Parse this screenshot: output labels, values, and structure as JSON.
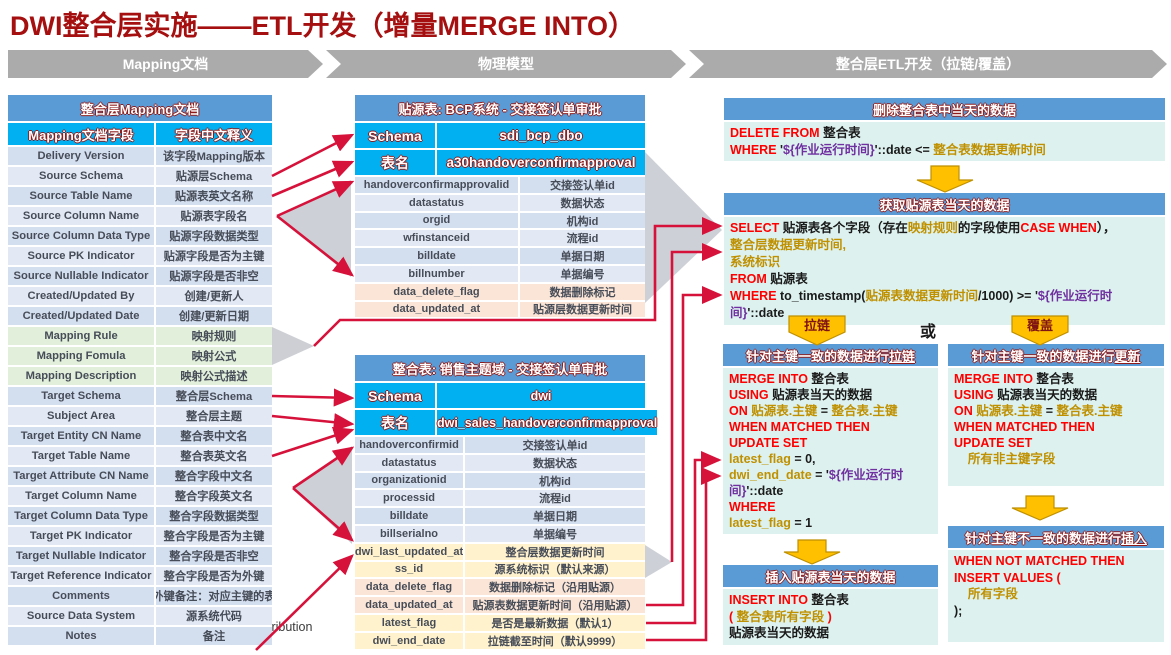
{
  "title": "DWI整合层实施——ETL开发（增量MERGE INTO）",
  "steps": [
    "Mapping文档",
    "物理模型",
    "整合层ETL开发（拉链/覆盖）"
  ],
  "labels": {
    "chain": "拉链",
    "overwrite": "覆盖",
    "or": "或",
    "stray": "distribution"
  },
  "mapping_table": {
    "title": "整合层Mapping文档",
    "columns": [
      "Mapping文档字段",
      "字段中文释义"
    ],
    "rows": [
      {
        "f": "Delivery Version",
        "d": "该字段Mapping版本"
      },
      {
        "f": "Source Schema",
        "d": "贴源层Schema"
      },
      {
        "f": "Source Table Name",
        "d": "贴源表英文名称"
      },
      {
        "f": "Source Column Name",
        "d": "贴源表字段名"
      },
      {
        "f": "Source Column Data Type",
        "d": "贴源字段数据类型"
      },
      {
        "f": "Source PK Indicator",
        "d": "贴源字段是否为主键"
      },
      {
        "f": "Source Nullable Indicator",
        "d": "贴源字段是否非空"
      },
      {
        "f": "Created/Updated By",
        "d": "创建/更新人"
      },
      {
        "f": "Created/Updated Date",
        "d": "创建/更新日期"
      },
      {
        "f": "Mapping Rule",
        "d": "映射规则",
        "tone": "green"
      },
      {
        "f": "Mapping Fomula",
        "d": "映射公式",
        "tone": "green"
      },
      {
        "f": "Mapping Description",
        "d": "映射公式描述",
        "tone": "green"
      },
      {
        "f": "Target Schema",
        "d": "整合层Schema"
      },
      {
        "f": "Subject Area",
        "d": "整合层主题"
      },
      {
        "f": "Target Entity CN Name",
        "d": "整合表中文名"
      },
      {
        "f": "Target Table Name",
        "d": "整合表英文名"
      },
      {
        "f": "Target Attribute CN Name",
        "d": "整合字段中文名"
      },
      {
        "f": "Target Column Name",
        "d": "整合字段英文名"
      },
      {
        "f": "Target Column Data Type",
        "d": "整合字段数据类型"
      },
      {
        "f": "Target PK Indicator",
        "d": "整合字段是否为主键"
      },
      {
        "f": "Target Nullable Indicator",
        "d": "整合字段是否非空"
      },
      {
        "f": "Target Reference Indicator",
        "d": "整合字段是否为外键"
      },
      {
        "f": "Comments",
        "d": "外键备注：对应主键的表"
      },
      {
        "f": "Source Data System",
        "d": "源系统代码"
      },
      {
        "f": "Notes",
        "d": "备注"
      }
    ]
  },
  "source_table": {
    "title": "贴源表: BCP系统 - 交接签认单审批",
    "schema_label": "Schema",
    "schema_value": "sdi_bcp_dbo",
    "name_label": "表名",
    "name_value": "a30handoverconfirmapproval",
    "rows": [
      {
        "f": "handoverconfirmapprovalid",
        "d": "交接签认单id"
      },
      {
        "f": "datastatus",
        "d": "数据状态"
      },
      {
        "f": "orgid",
        "d": "机构id"
      },
      {
        "f": "wfinstanceid",
        "d": "流程id"
      },
      {
        "f": "billdate",
        "d": "单据日期"
      },
      {
        "f": "billnumber",
        "d": "单据编号"
      },
      {
        "f": "data_delete_flag",
        "d": "数据删除标记",
        "tone": "orange"
      },
      {
        "f": "data_updated_at",
        "d": "贴源层数据更新时间",
        "tone": "orange"
      }
    ]
  },
  "target_table": {
    "title": "整合表: 销售主题域 - 交接签认单审批",
    "schema_label": "Schema",
    "schema_value": "dwi",
    "name_label": "表名",
    "name_value": "dwi_sales_handoverconfirmapproval",
    "rows": [
      {
        "f": "handoverconfirmid",
        "d": "交接签认单id"
      },
      {
        "f": "datastatus",
        "d": "数据状态"
      },
      {
        "f": "organizationid",
        "d": "机构id"
      },
      {
        "f": "processid",
        "d": "流程id"
      },
      {
        "f": "billdate",
        "d": "单据日期"
      },
      {
        "f": "billserialno",
        "d": "单据编号"
      },
      {
        "f": "dwi_last_updated_at",
        "d": "整合层数据更新时间",
        "tone": "yellow"
      },
      {
        "f": "ss_id",
        "d": "源系统标识（默认来源）",
        "tone": "yellow"
      },
      {
        "f": "data_delete_flag",
        "d": "数据删除标记（沿用贴源）",
        "tone": "orange"
      },
      {
        "f": "data_updated_at",
        "d": "贴源表数据更新时间（沿用贴源）",
        "tone": "orange"
      },
      {
        "f": "latest_flag",
        "d": "是否是最新数据（默认1）",
        "tone": "yellow"
      },
      {
        "f": "dwi_end_date",
        "d": "拉链截至时间（默认9999）",
        "tone": "yellow"
      }
    ]
  },
  "flow": {
    "delete": {
      "header": "删除整合表中当天的数据",
      "lines": [
        [
          {
            "t": "DELETE FROM ",
            "c": "kw"
          },
          {
            "t": "整合表"
          }
        ],
        [
          {
            "t": "WHERE ",
            "c": "kw"
          },
          {
            "t": "'"
          },
          {
            "t": "${作业运行时间}",
            "c": "pp"
          },
          {
            "t": "'::date <= "
          },
          {
            "t": "整合表数据更新时间",
            "c": "gd"
          }
        ]
      ]
    },
    "select": {
      "header": "获取贴源表当天的数据",
      "lines": [
        [
          {
            "t": "SELECT ",
            "c": "kw"
          },
          {
            "t": "贴源表各个字段（存在"
          },
          {
            "t": "映射规则",
            "c": "gd"
          },
          {
            "t": "的字段使用"
          },
          {
            "t": "CASE WHEN",
            "c": "kw"
          },
          {
            "t": "），"
          }
        ],
        [
          {
            "t": "整合层数据更新时间,",
            "c": "gd"
          }
        ],
        [
          {
            "t": "系统标识",
            "c": "gd"
          }
        ],
        [
          {
            "t": "FROM ",
            "c": "kw"
          },
          {
            "t": "贴源表"
          }
        ],
        [
          {
            "t": "WHERE ",
            "c": "kw"
          },
          {
            "t": "to_timestamp("
          },
          {
            "t": "贴源表数据更新时间",
            "c": "gd"
          },
          {
            "t": "/1000) >= '"
          },
          {
            "t": "${作业运行时间}",
            "c": "pp"
          },
          {
            "t": "'::date"
          }
        ]
      ]
    },
    "merge_chain": {
      "header": [
        [
          {
            "t": "针对主键一致的数据进行"
          },
          {
            "t": "拉链",
            "u": true
          }
        ]
      ],
      "lines": [
        [
          {
            "t": "MERGE INTO ",
            "c": "kw"
          },
          {
            "t": "整合表"
          }
        ],
        [
          {
            "t": "USING ",
            "c": "kw"
          },
          {
            "t": "贴源表当天的数据"
          }
        ],
        [
          {
            "t": "ON ",
            "c": "kw"
          },
          {
            "t": "贴源表.主键",
            "c": "gd"
          },
          {
            "t": " = "
          },
          {
            "t": "整合表.主键",
            "c": "gd"
          }
        ],
        [
          {
            "t": "WHEN MATCHED THEN",
            "c": "kw"
          }
        ],
        [
          {
            "t": "UPDATE SET",
            "c": "kw"
          }
        ],
        [
          {
            "t": "latest_flag",
            "c": "gd"
          },
          {
            "t": " = 0,"
          }
        ],
        [
          {
            "t": "dwi_end_date",
            "c": "gd"
          },
          {
            "t": " = '"
          },
          {
            "t": "${作业运行时间}",
            "c": "pp"
          },
          {
            "t": "'::date"
          }
        ],
        [
          {
            "t": "WHERE",
            "c": "kw"
          }
        ],
        [
          {
            "t": "latest_flag",
            "c": "gd"
          },
          {
            "t": " = 1"
          }
        ]
      ]
    },
    "merge_update": {
      "header": [
        [
          {
            "t": "针对主键一致的数据进行"
          },
          {
            "t": "更新",
            "u": true
          }
        ]
      ],
      "lines": [
        [
          {
            "t": "MERGE INTO ",
            "c": "kw"
          },
          {
            "t": "整合表"
          }
        ],
        [
          {
            "t": "USING ",
            "c": "kw"
          },
          {
            "t": "贴源表当天的数据"
          }
        ],
        [
          {
            "t": "ON ",
            "c": "kw"
          },
          {
            "t": "贴源表.主键",
            "c": "gd"
          },
          {
            "t": " = "
          },
          {
            "t": "整合表.主键",
            "c": "gd"
          }
        ],
        [
          {
            "t": "WHEN MATCHED THEN",
            "c": "kw"
          }
        ],
        [
          {
            "t": "UPDATE SET",
            "c": "kw"
          }
        ],
        [
          {
            "t": "    "
          },
          {
            "t": "所有非主键字段",
            "c": "gd"
          }
        ]
      ]
    },
    "insert_day": {
      "header": "插入贴源表当天的数据",
      "lines": [
        [
          {
            "t": "INSERT INTO ",
            "c": "kw"
          },
          {
            "t": "整合表"
          }
        ],
        [
          {
            "t": "( ",
            "c": "kw"
          },
          {
            "t": "整合表所有字段",
            "c": "gd"
          },
          {
            "t": " )",
            "c": "kw"
          }
        ],
        [
          {
            "t": "贴源表当天的数据"
          }
        ]
      ]
    },
    "insert_new": {
      "header": [
        [
          {
            "t": "针对主键不一致的数据进行"
          },
          {
            "t": "插入",
            "u": true
          }
        ]
      ],
      "lines": [
        [
          {
            "t": "WHEN NOT MATCHED THEN",
            "c": "kw"
          }
        ],
        [
          {
            "t": "INSERT VALUES (",
            "c": "kw"
          }
        ],
        [
          {
            "t": "    "
          },
          {
            "t": "所有字段",
            "c": "gd"
          }
        ],
        [
          {
            "t": ");"
          }
        ]
      ]
    }
  }
}
